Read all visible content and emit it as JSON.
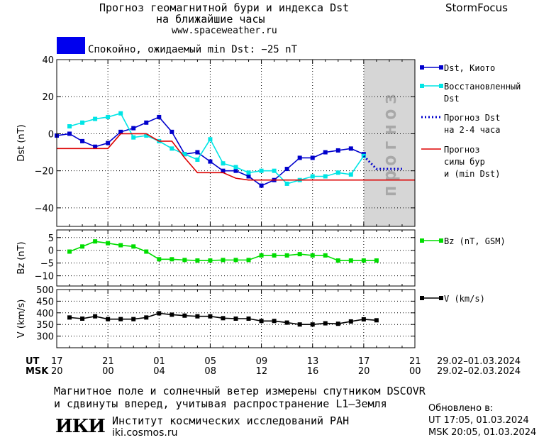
{
  "header": {
    "title_line1": "Прогноз геомагнитной бури и индекса Dst",
    "title_line2": "на ближайшие часы",
    "site": "www.spaceweather.ru",
    "brand": "StormFocus",
    "status_text": "Спокойно, ожидаемый min Dst: −25 nT",
    "status_color": "#0000ee"
  },
  "footer": {
    "note_line1": "Магнитное поле и солнечный ветер измерены спутником DSCOVR",
    "note_line2": "и сдвинуты вперед, учитывая распространение L1–Земля",
    "institute_logo": "ИКИ",
    "institute": "Институт космических исследований РАН",
    "institute_site": "iki.cosmos.ru",
    "updated_label": "Обновлено в:",
    "updated_ut": "UT  17:05, 01.03.2024",
    "updated_msk": "MSK 20:05, 01.03.2024"
  },
  "x_axis": {
    "ut_label": "UT",
    "msk_label": "MSK",
    "ut_ticks": [
      "17",
      "21",
      "01",
      "05",
      "09",
      "13",
      "17",
      "21"
    ],
    "msk_ticks": [
      "20",
      "00",
      "04",
      "08",
      "12",
      "16",
      "20",
      "00"
    ],
    "date_ut": "29.02–01.03.2024",
    "date_msk": "29.02–02.03.2024"
  },
  "chart_data": [
    {
      "type": "line",
      "panel": "dst",
      "ylabel": "Dst (nT)",
      "ylim": [
        -50,
        40
      ],
      "yticks": [
        40,
        20,
        0,
        -20,
        -40
      ],
      "x_unit": "hours since 29.02 17:00 UT",
      "forecast_band_label": "прогноз",
      "forecast_band_xlim": [
        24,
        28
      ],
      "series": [
        {
          "name": "Dst, Киото",
          "color": "#0000cc",
          "marker": "square",
          "x": [
            0,
            1,
            2,
            3,
            4,
            5,
            6,
            7,
            8,
            9,
            10,
            11,
            12,
            13,
            14,
            15,
            16,
            17,
            18,
            19,
            20,
            21,
            22,
            23,
            24
          ],
          "y": [
            -1,
            0,
            -4,
            -7,
            -5,
            1,
            3,
            6,
            9,
            1,
            -11,
            -10,
            -15,
            -20,
            -20,
            -23,
            -28,
            -25,
            -19,
            -13,
            -13,
            -10,
            -9,
            -8,
            -11
          ]
        },
        {
          "name": "Восстановленный Dst",
          "color": "#00e5e5",
          "marker": "square",
          "x": [
            1,
            2,
            3,
            4,
            5,
            6,
            7,
            8,
            9,
            10,
            11,
            12,
            13,
            14,
            15,
            16,
            17,
            18,
            19,
            20,
            21,
            22,
            23,
            24
          ],
          "y": [
            4,
            6,
            8,
            9,
            11,
            -2,
            -1,
            -4,
            -8,
            -11,
            -14,
            -3,
            -16,
            -18,
            -21,
            -20,
            -20,
            -27,
            -25,
            -23,
            -23,
            -21,
            -22,
            -12
          ]
        },
        {
          "name": "Прогноз Dst на 2-4 часа",
          "color": "#0000cc",
          "style": "dotted",
          "x": [
            24,
            25,
            26,
            27
          ],
          "y": [
            -12,
            -19,
            -19,
            -19
          ]
        },
        {
          "name": "Прогноз силы бури (min Dst)",
          "color": "#dd0000",
          "style": "step",
          "x": [
            0,
            4,
            5,
            6,
            7,
            8,
            9,
            10,
            11,
            12,
            13,
            14,
            15,
            16,
            17,
            18,
            19,
            20,
            21,
            22,
            23,
            24,
            25,
            26,
            27,
            28
          ],
          "y": [
            -8,
            -8,
            0,
            0,
            0,
            -4,
            -4,
            -13,
            -21,
            -21,
            -21,
            -24,
            -25,
            -25,
            -25,
            -25,
            -25,
            -25,
            -25,
            -25,
            -25,
            -25,
            -25,
            -25,
            -25,
            -25
          ]
        }
      ]
    },
    {
      "type": "line",
      "panel": "bz",
      "ylabel": "Bz (nT)",
      "ylim": [
        -14,
        8
      ],
      "yticks": [
        5,
        0,
        -5,
        -10
      ],
      "series": [
        {
          "name": "Bz (nT, GSM)",
          "color": "#00dd00",
          "marker": "square",
          "x": [
            1,
            2,
            3,
            4,
            5,
            6,
            7,
            8,
            9,
            10,
            11,
            12,
            13,
            14,
            15,
            16,
            17,
            18,
            19,
            20,
            21,
            22,
            23,
            24,
            25
          ],
          "y": [
            -0.5,
            1.5,
            3.5,
            2.8,
            2,
            1.5,
            -0.5,
            -3.5,
            -3.5,
            -3.8,
            -4,
            -4,
            -3.8,
            -3.8,
            -3.8,
            -2,
            -2,
            -2,
            -1.5,
            -2,
            -2,
            -4,
            -4,
            -4,
            -4
          ]
        }
      ]
    },
    {
      "type": "line",
      "panel": "v",
      "ylabel": "V (km/s)",
      "ylim": [
        250,
        500
      ],
      "yticks": [
        500,
        450,
        400,
        350,
        300
      ],
      "series": [
        {
          "name": "V (km/s)",
          "color": "#000000",
          "marker": "square",
          "x": [
            1,
            2,
            3,
            4,
            5,
            6,
            7,
            8,
            9,
            10,
            11,
            12,
            13,
            14,
            15,
            16,
            17,
            18,
            19,
            20,
            21,
            22,
            23,
            24,
            25
          ],
          "y": [
            380,
            375,
            385,
            373,
            373,
            373,
            380,
            398,
            392,
            388,
            385,
            385,
            377,
            375,
            375,
            365,
            365,
            358,
            350,
            350,
            355,
            353,
            363,
            372,
            368
          ]
        }
      ]
    }
  ]
}
